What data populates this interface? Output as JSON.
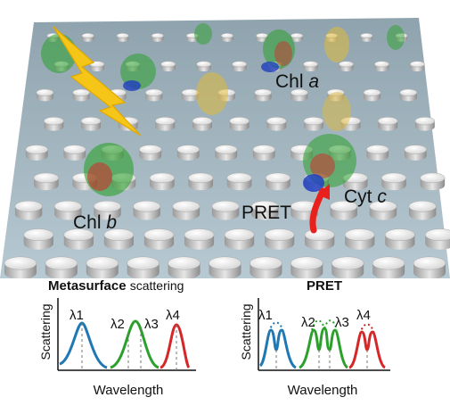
{
  "scene_labels": {
    "chl_a_text": "Chl",
    "chl_a_italic": "a",
    "chl_b_text": "Chl",
    "chl_b_italic": "b",
    "cyt_c_text": "Cyt",
    "cyt_c_italic": "c",
    "pret": "PRET"
  },
  "panel_left": {
    "title_bold": "Metasurface",
    "title_light": "scattering",
    "ylabel": "Scattering",
    "xlabel": "Wavelength",
    "peaks": [
      "λ1",
      "λ2",
      "λ3",
      "λ4"
    ]
  },
  "panel_right": {
    "title_bold": "PRET",
    "ylabel": "Scattering",
    "xlabel": "Wavelength",
    "peaks": [
      "λ1",
      "λ2",
      "λ3",
      "λ4"
    ]
  },
  "colors": {
    "peak1": "#1f78b4",
    "peak23": "#2ca02c",
    "peak4": "#d62728",
    "lightning": "#f5c518",
    "arrow": "#e8211c",
    "substrate": "#9fb3bf"
  }
}
